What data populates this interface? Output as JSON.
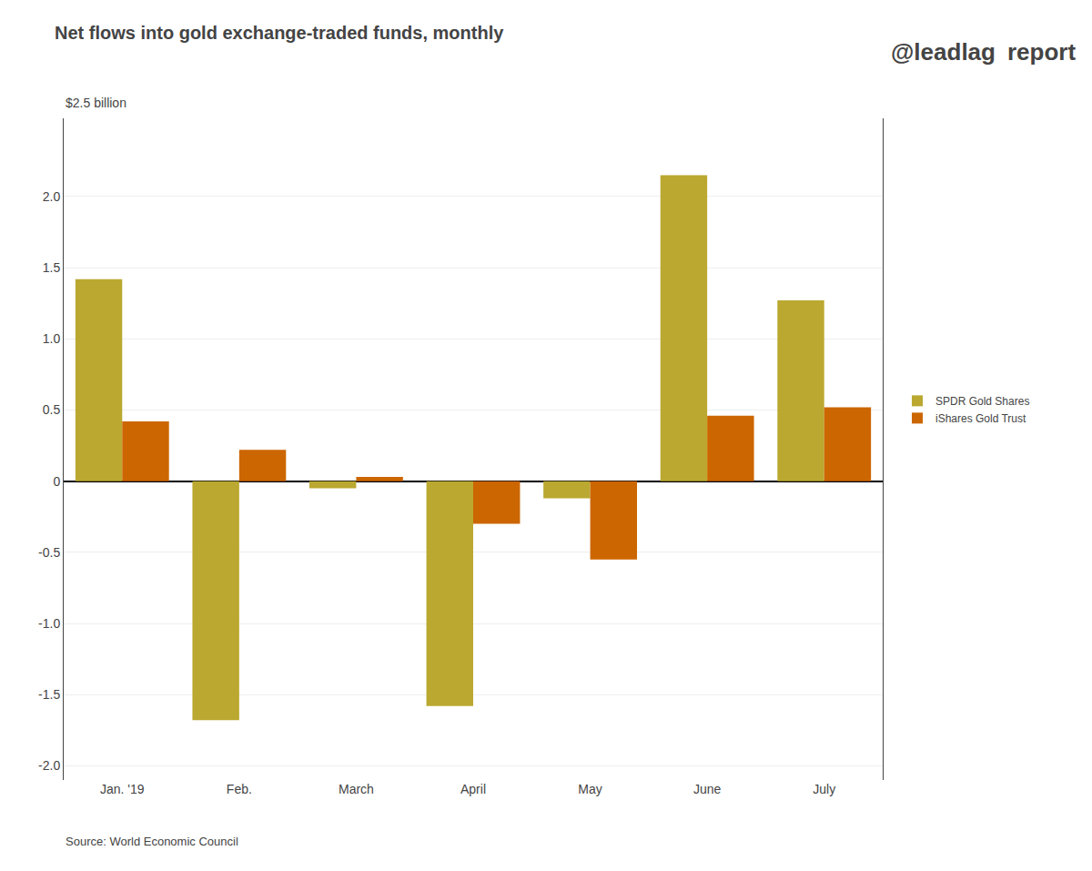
{
  "chart_data": {
    "type": "bar",
    "title": "Net flows into gold exchange-traded funds, monthly",
    "ylabel": "$2.5 billion",
    "categories": [
      "Jan. '19",
      "Feb.",
      "March",
      "April",
      "May",
      "June",
      "July"
    ],
    "series": [
      {
        "name": "SPDR Gold Shares",
        "color": "#BBA830",
        "values": [
          1.42,
          -1.68,
          -0.05,
          -1.58,
          -0.12,
          2.15,
          1.27
        ]
      },
      {
        "name": "iShares Gold Trust",
        "color": "#CC6600",
        "values": [
          0.42,
          0.22,
          0.03,
          -0.3,
          -0.55,
          0.46,
          0.52
        ]
      }
    ],
    "ylim": [
      -2.1,
      2.55
    ],
    "yticks": [
      {
        "value": -2.0,
        "label": "-2.0"
      },
      -1.5,
      {
        "value": -1.0,
        "label": "-1.0"
      },
      -0.5,
      0,
      0.5,
      {
        "value": 1.0,
        "label": "1.0"
      },
      1.5,
      {
        "value": 2.0,
        "label": "2.0"
      }
    ],
    "grid": true,
    "legend": "right",
    "annotations": [
      "Source: World Economic Council",
      "@leadlag",
      "report"
    ]
  }
}
